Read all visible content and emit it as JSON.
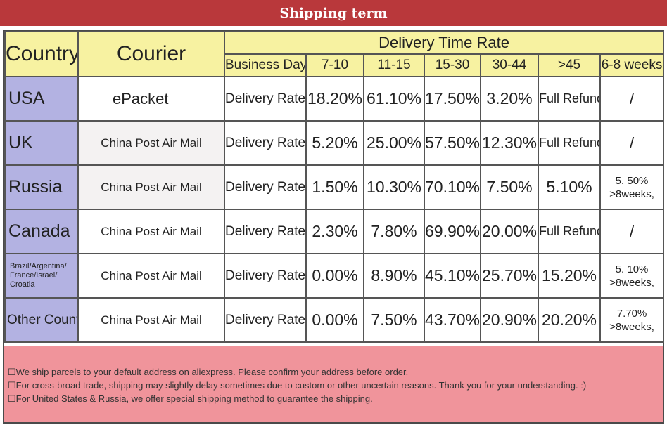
{
  "banner": {
    "title": "Shipping term"
  },
  "table": {
    "header": {
      "country": "Country",
      "courier": "Courier",
      "delivery_time_rate": "Delivery Time Rate",
      "business_days": "Business Days",
      "ranges": [
        "7-10",
        "11-15",
        "15-30",
        "30-44",
        ">45",
        "6-8 weeks"
      ]
    },
    "rows": [
      {
        "country": "USA",
        "courier": "ePacket",
        "label": "Delivery Rate",
        "values": [
          "18.20%",
          "61.10%",
          "17.50%",
          "3.20%",
          "Full Refund",
          "/"
        ]
      },
      {
        "country": "UK",
        "courier": "China Post Air Mail",
        "label": "Delivery Rate",
        "values": [
          "5.20%",
          "25.00%",
          "57.50%",
          "12.30%",
          "Full Refund",
          "/"
        ]
      },
      {
        "country": "Russia",
        "courier": "China Post Air Mail",
        "label": "Delivery Rate",
        "values": [
          "1.50%",
          "10.30%",
          "70.10%",
          "7.50%",
          "5.10%",
          "5. 50%\n>8weeks,"
        ]
      },
      {
        "country": "Canada",
        "courier": "China Post Air Mail",
        "label": "Delivery Rate",
        "values": [
          "2.30%",
          "7.80%",
          "69.90%",
          "20.00%",
          "Full Refund",
          "/"
        ]
      },
      {
        "country": "Brazil/Argentina/ France/Israel/ Croatia",
        "courier": "China Post Air Mail",
        "label": "Delivery Rate",
        "values": [
          "0.00%",
          "8.90%",
          "45.10%",
          "25.70%",
          "15.20%",
          "5. 10%\n>8weeks,"
        ]
      },
      {
        "country": "Other Countries",
        "courier": "China Post Air Mail",
        "label": "Delivery Rate",
        "values": [
          "0.00%",
          "7.50%",
          "43.70%",
          "20.90%",
          "20.20%",
          "7.70%\n>8weeks,"
        ]
      }
    ]
  },
  "notes": [
    "☐We ship parcels to your default address on aliexpress. Please confirm your address before order.",
    "☐For cross-broad trade, shipping may slightly delay sometimes due to custom or other uncertain reasons. Thank you for your understanding. :)",
    "☐For United States & Russia, we offer special shipping method to guarantee the shipping."
  ],
  "colors": {
    "banner": "#b9383b",
    "header": "#f7f2a1",
    "country_cell": "#b3b2e2",
    "footer": "#f0949b"
  }
}
